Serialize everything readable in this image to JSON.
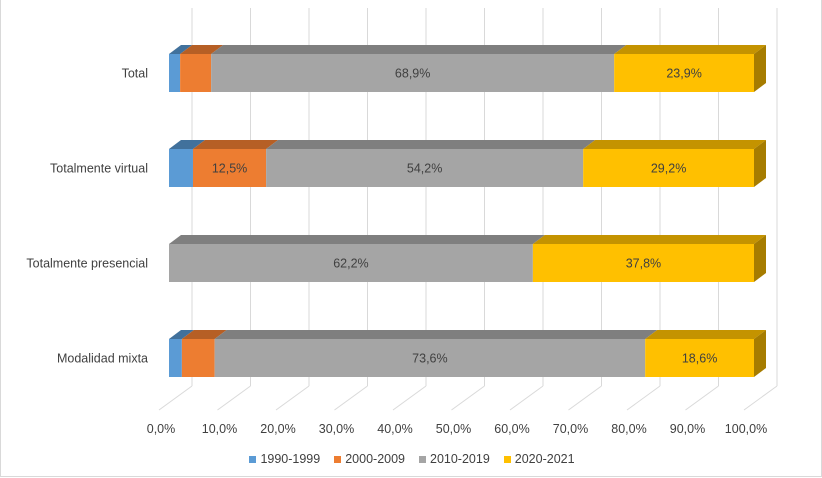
{
  "chart_data": {
    "type": "bar",
    "orientation": "horizontal",
    "stacked": "100%",
    "style": "3d",
    "title": "",
    "xlabel": "",
    "ylabel": "",
    "xlim": [
      0,
      100
    ],
    "grid": true,
    "legend_position": "bottom",
    "categories": [
      "Total",
      "Totalmente virtual",
      "Totalmente presencial",
      "Modalidad mixta"
    ],
    "x_ticks": [
      "0,0%",
      "10,0%",
      "20,0%",
      "30,0%",
      "40,0%",
      "50,0%",
      "60,0%",
      "70,0%",
      "80,0%",
      "90,0%",
      "100,0%"
    ],
    "series": [
      {
        "name": "1990-1999",
        "color": "#5b9bd5",
        "top": "#41719c",
        "side": "#3f6b93",
        "values": [
          1.9,
          4.1,
          0,
          2.2
        ],
        "labels": [
          "",
          "",
          "",
          ""
        ]
      },
      {
        "name": "2000-2009",
        "color": "#ed7d31",
        "top": "#b65f25",
        "side": "#ae5a22",
        "values": [
          5.3,
          12.5,
          0,
          5.6
        ],
        "labels": [
          "",
          "12,5%",
          "",
          ""
        ]
      },
      {
        "name": "2010-2019",
        "color": "#a5a5a5",
        "top": "#7f7f7f",
        "side": "#797979",
        "values": [
          68.9,
          54.2,
          62.2,
          73.6
        ],
        "labels": [
          "68,9%",
          "54,2%",
          "62,2%",
          "73,6%"
        ]
      },
      {
        "name": "2020-2021",
        "color": "#ffc000",
        "top": "#c49300",
        "side": "#a67c00",
        "values": [
          23.9,
          29.2,
          37.8,
          18.6
        ],
        "labels": [
          "23,9%",
          "29,2%",
          "37,8%",
          "18,6%"
        ]
      }
    ]
  },
  "legend": {
    "items": [
      {
        "label": "1990-1999",
        "color": "#5b9bd5"
      },
      {
        "label": "2000-2009",
        "color": "#ed7d31"
      },
      {
        "label": "2010-2019",
        "color": "#a5a5a5"
      },
      {
        "label": "2020-2021",
        "color": "#ffc000"
      }
    ]
  }
}
